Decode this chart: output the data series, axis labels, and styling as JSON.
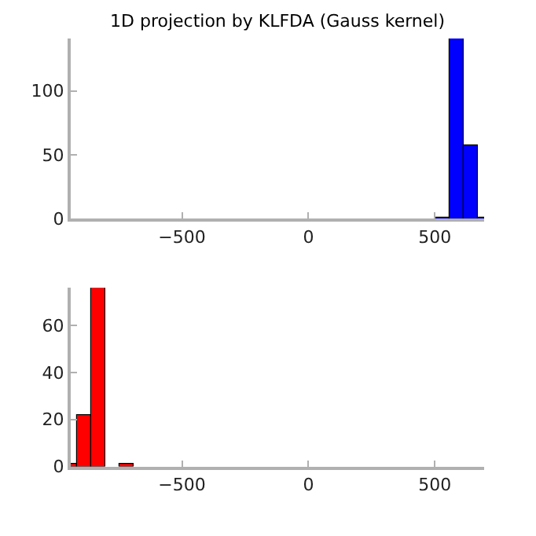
{
  "chart_data": [
    {
      "type": "histogram",
      "title": "1D projection by KLFDA (Gauss kernel)",
      "bins": [
        502,
        558,
        614,
        670,
        695
      ],
      "values": [
        1,
        141,
        57,
        1
      ],
      "color": "#0000ff",
      "xlim": [
        -940,
        695
      ],
      "xticks": [
        -500,
        0,
        500
      ],
      "ylim": [
        0,
        141
      ],
      "yticks": [
        0,
        50,
        100
      ]
    },
    {
      "type": "histogram",
      "bins": [
        -940,
        -915,
        -860,
        -803,
        -746,
        -690
      ],
      "values": [
        1,
        22,
        76,
        0,
        1
      ],
      "color": "#ff0000",
      "xlim": [
        -940,
        695
      ],
      "xticks": [
        -500,
        0,
        500
      ],
      "ylim": [
        0,
        76
      ],
      "yticks": [
        0,
        20,
        40,
        60
      ]
    }
  ]
}
